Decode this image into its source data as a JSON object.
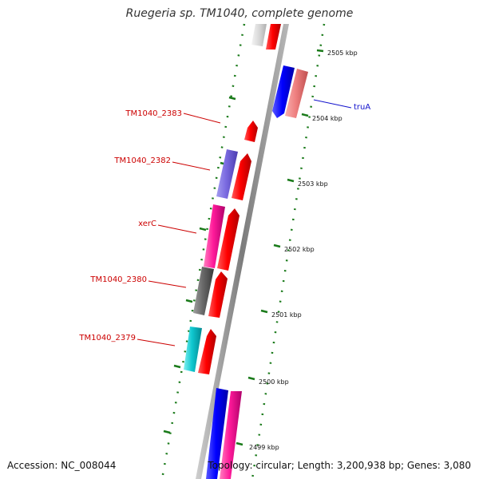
{
  "title": "Ruegeria sp. TM1040, complete genome",
  "footer": {
    "accession": "Accession: NC_008044",
    "topology": "Topology: circular; Length: 3,200,938 bp; Genes: 3,080"
  },
  "colors": {
    "backbone": "#888888",
    "tick": "#1a7a1a",
    "label_red": "#cc0000",
    "label_blue": "#1010cc"
  },
  "ticks": [
    "2505 kbp",
    "2504 kbp",
    "2503 kbp",
    "2502 kbp",
    "2501 kbp",
    "2500 kbp",
    "2499 kbp"
  ],
  "gene_labels": [
    {
      "name": "TM1040_2383",
      "color": "red"
    },
    {
      "name": "TM1040_2382",
      "color": "red"
    },
    {
      "name": "xerC",
      "color": "red"
    },
    {
      "name": "TM1040_2380",
      "color": "red"
    },
    {
      "name": "TM1040_2379",
      "color": "red"
    },
    {
      "name": "truA",
      "color": "blue"
    }
  ]
}
